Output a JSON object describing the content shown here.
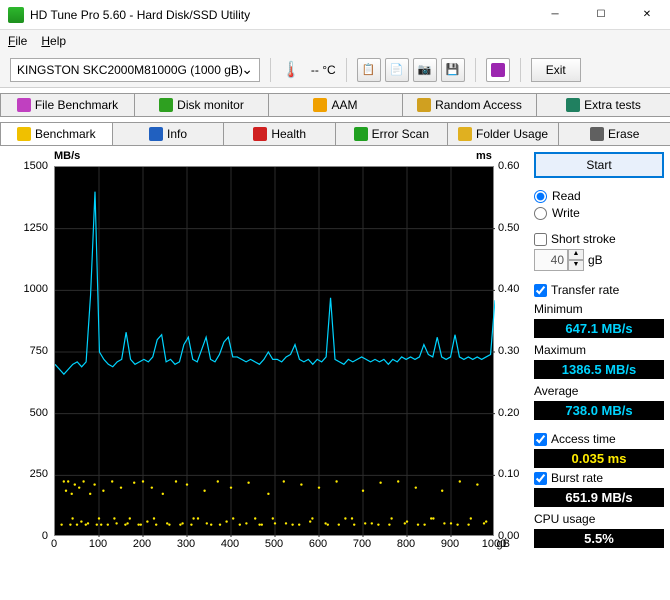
{
  "window": {
    "title": "HD Tune Pro 5.60 - Hard Disk/SSD Utility"
  },
  "menu": {
    "file": "File",
    "help": "Help"
  },
  "toolbar": {
    "drive": "KINGSTON SKC2000M81000G (1000 gB)",
    "temp": "--  °C",
    "exit": "Exit"
  },
  "tabs_row1": [
    {
      "label": "File Benchmark",
      "icon": "#c040c0"
    },
    {
      "label": "Disk monitor",
      "icon": "#2ea020"
    },
    {
      "label": "AAM",
      "icon": "#f0a000"
    },
    {
      "label": "Random Access",
      "icon": "#d0a020"
    },
    {
      "label": "Extra tests",
      "icon": "#208060"
    }
  ],
  "tabs_row2": [
    {
      "label": "Benchmark",
      "icon": "#f0c000",
      "active": true
    },
    {
      "label": "Info",
      "icon": "#2060c0"
    },
    {
      "label": "Health",
      "icon": "#d02020"
    },
    {
      "label": "Error Scan",
      "icon": "#20a020"
    },
    {
      "label": "Folder Usage",
      "icon": "#e0b020"
    },
    {
      "label": "Erase",
      "icon": "#606060"
    }
  ],
  "chart": {
    "left_unit": "MB/s",
    "right_unit": "ms",
    "x_unit": "gB",
    "ylim_left": [
      0,
      1500
    ],
    "ytick_left": [
      0,
      250,
      500,
      750,
      1000,
      1250,
      1500
    ],
    "ylim_right": [
      0,
      0.6
    ],
    "ytick_right": [
      "0.00",
      "0.10",
      "0.20",
      "0.30",
      "0.40",
      "0.50",
      "0.60"
    ],
    "xlim": [
      0,
      1000
    ],
    "xtick": [
      0,
      100,
      200,
      300,
      400,
      500,
      600,
      700,
      800,
      900,
      1000
    ],
    "bg": "#000000",
    "grid_color": "#2d2d2d",
    "line_color": "#00d4ff",
    "dot_color": "#ffeb00",
    "transfer_mb_s": [
      700,
      680,
      660,
      680,
      700,
      710,
      690,
      710,
      980,
      1400,
      750,
      720,
      700,
      690,
      710,
      720,
      830,
      720,
      700,
      710,
      720,
      710,
      730,
      800,
      820,
      710,
      720,
      700,
      710,
      780,
      810,
      720,
      710,
      760,
      810,
      720,
      710,
      740,
      790,
      810,
      730,
      730,
      720,
      710,
      720,
      710,
      700,
      720,
      750,
      720,
      720,
      710,
      730,
      740,
      780,
      720,
      710,
      720,
      700,
      720,
      710,
      730,
      970,
      720,
      710,
      700,
      720,
      710,
      720,
      730,
      720,
      710,
      720,
      710,
      720,
      700,
      720,
      710,
      730,
      720,
      730,
      720,
      730,
      780,
      740,
      730,
      810,
      730,
      720,
      730,
      820,
      730,
      720,
      730,
      720,
      730,
      720,
      730,
      740,
      960
    ],
    "access_ms": [
      [
        20,
        0.09
      ],
      [
        25,
        0.075
      ],
      [
        30,
        0.09
      ],
      [
        35,
        0.02
      ],
      [
        38,
        0.07
      ],
      [
        45,
        0.085
      ],
      [
        50,
        0.02
      ],
      [
        55,
        0.08
      ],
      [
        60,
        0.025
      ],
      [
        65,
        0.09
      ],
      [
        70,
        0.02
      ],
      [
        80,
        0.07
      ],
      [
        90,
        0.085
      ],
      [
        95,
        0.02
      ],
      [
        100,
        0.03
      ],
      [
        110,
        0.075
      ],
      [
        120,
        0.02
      ],
      [
        130,
        0.09
      ],
      [
        140,
        0.022
      ],
      [
        150,
        0.08
      ],
      [
        160,
        0.02
      ],
      [
        170,
        0.03
      ],
      [
        180,
        0.088
      ],
      [
        190,
        0.02
      ],
      [
        200,
        0.09
      ],
      [
        210,
        0.025
      ],
      [
        220,
        0.08
      ],
      [
        230,
        0.02
      ],
      [
        245,
        0.07
      ],
      [
        260,
        0.02
      ],
      [
        275,
        0.09
      ],
      [
        290,
        0.022
      ],
      [
        300,
        0.085
      ],
      [
        310,
        0.02
      ],
      [
        325,
        0.03
      ],
      [
        340,
        0.075
      ],
      [
        355,
        0.02
      ],
      [
        370,
        0.09
      ],
      [
        390,
        0.025
      ],
      [
        400,
        0.08
      ],
      [
        420,
        0.02
      ],
      [
        440,
        0.088
      ],
      [
        455,
        0.03
      ],
      [
        470,
        0.02
      ],
      [
        485,
        0.07
      ],
      [
        500,
        0.022
      ],
      [
        520,
        0.09
      ],
      [
        540,
        0.02
      ],
      [
        560,
        0.085
      ],
      [
        580,
        0.025
      ],
      [
        600,
        0.08
      ],
      [
        620,
        0.02
      ],
      [
        640,
        0.09
      ],
      [
        660,
        0.03
      ],
      [
        680,
        0.02
      ],
      [
        700,
        0.075
      ],
      [
        720,
        0.022
      ],
      [
        740,
        0.088
      ],
      [
        760,
        0.02
      ],
      [
        780,
        0.09
      ],
      [
        800,
        0.025
      ],
      [
        820,
        0.08
      ],
      [
        840,
        0.02
      ],
      [
        860,
        0.03
      ],
      [
        880,
        0.075
      ],
      [
        900,
        0.022
      ],
      [
        920,
        0.09
      ],
      [
        940,
        0.02
      ],
      [
        960,
        0.085
      ],
      [
        980,
        0.025
      ],
      [
        15,
        0.02
      ],
      [
        40,
        0.03
      ],
      [
        75,
        0.022
      ],
      [
        105,
        0.02
      ],
      [
        135,
        0.03
      ],
      [
        165,
        0.022
      ],
      [
        195,
        0.02
      ],
      [
        225,
        0.03
      ],
      [
        255,
        0.022
      ],
      [
        285,
        0.02
      ],
      [
        315,
        0.03
      ],
      [
        345,
        0.022
      ],
      [
        375,
        0.02
      ],
      [
        405,
        0.03
      ],
      [
        435,
        0.022
      ],
      [
        465,
        0.02
      ],
      [
        495,
        0.03
      ],
      [
        525,
        0.022
      ],
      [
        555,
        0.02
      ],
      [
        585,
        0.03
      ],
      [
        615,
        0.022
      ],
      [
        645,
        0.02
      ],
      [
        675,
        0.03
      ],
      [
        705,
        0.022
      ],
      [
        735,
        0.02
      ],
      [
        765,
        0.03
      ],
      [
        795,
        0.022
      ],
      [
        825,
        0.02
      ],
      [
        855,
        0.03
      ],
      [
        885,
        0.022
      ],
      [
        915,
        0.02
      ],
      [
        945,
        0.03
      ],
      [
        975,
        0.022
      ]
    ]
  },
  "controls": {
    "start": "Start",
    "read": "Read",
    "write": "Write",
    "short_stroke": "Short stroke",
    "stroke_val": "40",
    "stroke_unit": "gB",
    "transfer_rate": "Transfer rate",
    "min_label": "Minimum",
    "min_val": "647.1 MB/s",
    "max_label": "Maximum",
    "max_val": "1386.5 MB/s",
    "avg_label": "Average",
    "avg_val": "738.0 MB/s",
    "access_label": "Access time",
    "access_val": "0.035 ms",
    "burst_label": "Burst rate",
    "burst_val": "651.9 MB/s",
    "cpu_label": "CPU usage",
    "cpu_val": "5.5%"
  }
}
